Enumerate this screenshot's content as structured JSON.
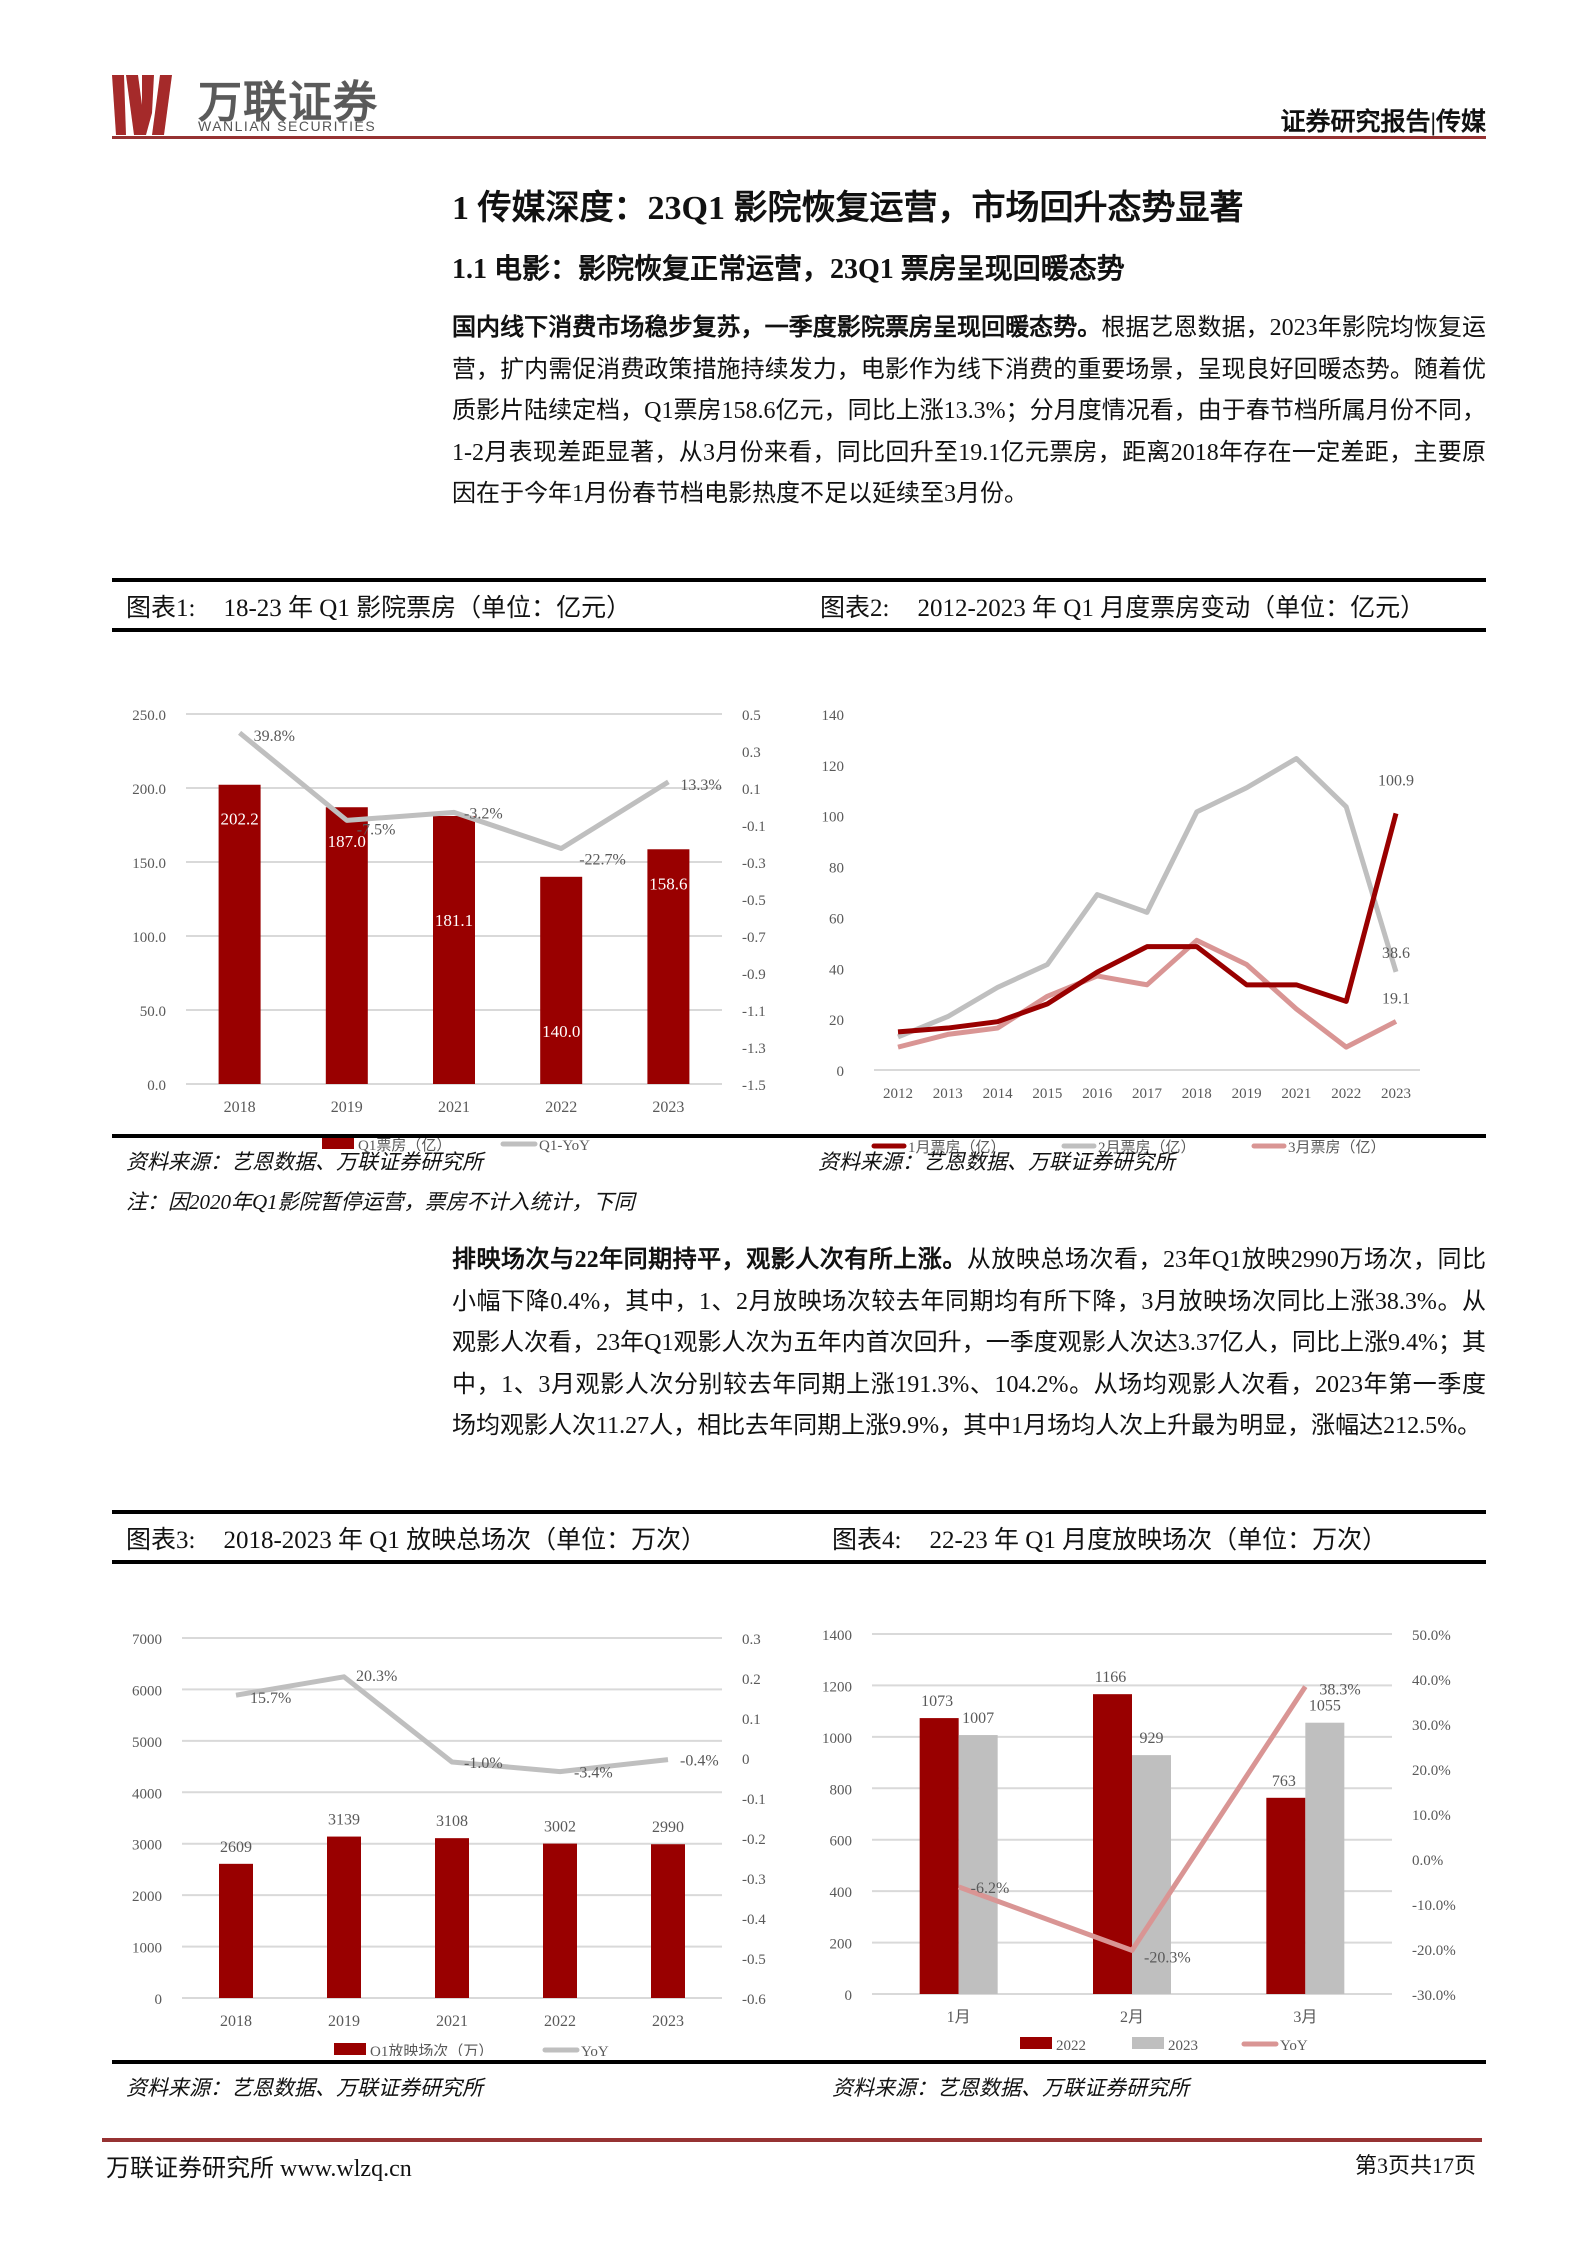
{
  "header": {
    "logo_cn": "万联证券",
    "logo_en": "WANLIAN SECURITIES",
    "report_type": "证券研究报告|传媒",
    "brand_color": "#963232",
    "logo_color": "#a52a2a"
  },
  "section": {
    "h1": "1   传媒深度：23Q1 影院恢复运营，市场回升态势显著",
    "h2": "1.1 电影：影院恢复正常运营，23Q1 票房呈现回暖态势"
  },
  "paragraph1": {
    "bold": "国内线下消费市场稳步复苏，一季度影院票房呈现回暖态势。",
    "text": "根据艺恩数据，2023年影院均恢复运营，扩内需促消费政策措施持续发力，电影作为线下消费的重要场景，呈现良好回暖态势。随着优质影片陆续定档，Q1票房158.6亿元，同比上涨13.3%；分月度情况看，由于春节档所属月份不同，1-2月表现差距显著，从3月份来看，同比回升至19.1亿元票房，距离2018年存在一定差距，主要原因在于今年1月份春节档电影热度不足以延续至3月份。"
  },
  "paragraph2": {
    "bold": "排映场次与22年同期持平，观影人次有所上涨。",
    "text": "从放映总场次看，23年Q1放映2990万场次，同比小幅下降0.4%，其中，1、2月放映场次较去年同期均有所下降，3月放映场次同比上涨38.3%。从观影人次看，23年Q1观影人次为五年内首次回升，一季度观影人次达3.37亿人，同比上涨9.4%；其中，1、3月观影人次分别较去年同期上涨191.3%、104.2%。从场均观影人次看，2023年第一季度场均观影人次11.27人，相比去年同期上涨9.9%，其中1月场均人次上升最为明显，涨幅达212.5%。"
  },
  "figures": {
    "fig1": {
      "label": "图表1:",
      "title": "18-23 年 Q1 影院票房（单位：亿元）",
      "source": "资料来源：艺恩数据、万联证券研究所"
    },
    "fig2": {
      "label": "图表2:",
      "title": "2012-2023 年 Q1 月度票房变动（单位：亿元）",
      "source": "资料来源：艺恩数据、万联证券研究所"
    },
    "fig3": {
      "label": "图表3:",
      "title": "2018-2023 年 Q1 放映总场次（单位：万次）",
      "source": "资料来源：艺恩数据、万联证券研究所"
    },
    "fig4": {
      "label": "图表4:",
      "title": "22-23 年 Q1 月度放映场次（单位：万次）",
      "source": "资料来源：艺恩数据、万联证券研究所"
    },
    "note": "注：因2020年Q1影院暂停运营，票房不计入统计，下同"
  },
  "footer": {
    "left": "万联证券研究所  www.wlzq.cn",
    "right": "第3页共17页"
  },
  "colors": {
    "dark_red": "#990000",
    "gray": "#bfbfbf",
    "pink": "#d99594",
    "grid": "#d9d9d9",
    "axis_text": "#595959"
  },
  "chart_data": [
    {
      "id": "fig1",
      "type": "bar",
      "title": "18-23 年 Q1 影院票房（单位：亿元）",
      "categories": [
        "2018",
        "2019",
        "2021",
        "2022",
        "2023"
      ],
      "series": [
        {
          "name": "Q1票房（亿）",
          "type": "bar",
          "axis": "left",
          "values": [
            202.2,
            187.0,
            181.1,
            140.0,
            158.6
          ],
          "labels": [
            "202.2",
            "187.0",
            "181.1",
            "140.0",
            "158.6"
          ]
        },
        {
          "name": "Q1-YoY",
          "type": "line",
          "axis": "right",
          "values": [
            0.398,
            -0.075,
            -0.032,
            -0.227,
            0.133
          ],
          "labels": [
            "39.8%",
            "-7.5%",
            "-3.2%",
            "-22.7%",
            "13.3%"
          ]
        }
      ],
      "ylim": [
        0,
        250
      ],
      "yticks": [
        "0.0",
        "50.0",
        "100.0",
        "150.0",
        "200.0",
        "250.0"
      ],
      "y2lim": [
        -1.5,
        0.5
      ],
      "y2ticks": [
        "-1.5",
        "-1.3",
        "-1.1",
        "-0.9",
        "-0.7",
        "-0.5",
        "-0.3",
        "-0.1",
        "0.1",
        "0.3",
        "0.5"
      ],
      "grid": true,
      "legend_position": "bottom"
    },
    {
      "id": "fig2",
      "type": "line",
      "title": "2012-2023 年 Q1 月度票房变动（单位：亿元）",
      "categories": [
        "2012",
        "2013",
        "2014",
        "2015",
        "2016",
        "2017",
        "2018",
        "2019",
        "2021",
        "2022",
        "2023"
      ],
      "series": [
        {
          "name": "1月票房（亿）",
          "values": [
            15.0,
            16.5,
            19.0,
            26.0,
            38.5,
            48.5,
            48.5,
            33.5,
            33.5,
            27.0,
            100.9
          ]
        },
        {
          "name": "2月票房（亿）",
          "values": [
            13.0,
            21.0,
            32.5,
            41.5,
            69.0,
            62.0,
            101.5,
            111.0,
            122.5,
            103.5,
            38.6
          ]
        },
        {
          "name": "3月票房（亿）",
          "values": [
            9.0,
            14.0,
            16.5,
            29.0,
            37.0,
            33.5,
            51.0,
            41.5,
            24.0,
            9.0,
            19.1
          ]
        }
      ],
      "annotations": [
        "100.9",
        "38.6",
        "19.1"
      ],
      "ylim": [
        0,
        140
      ],
      "yticks": [
        "0",
        "20",
        "40",
        "60",
        "80",
        "100",
        "120",
        "140"
      ],
      "grid": false,
      "legend_position": "bottom"
    },
    {
      "id": "fig3",
      "type": "bar",
      "title": "2018-2023 年 Q1 放映总场次（单位：万次）",
      "categories": [
        "2018",
        "2019",
        "2021",
        "2022",
        "2023"
      ],
      "series": [
        {
          "name": "Q1放映场次（万）",
          "type": "bar",
          "axis": "left",
          "values": [
            2609,
            3139,
            3108,
            3002,
            2990
          ],
          "labels": [
            "2609",
            "3139",
            "3108",
            "3002",
            "2990"
          ]
        },
        {
          "name": "YoY",
          "type": "line",
          "axis": "right",
          "values": [
            0.157,
            0.203,
            -0.01,
            -0.034,
            -0.004
          ],
          "labels": [
            "15.7%",
            "20.3%",
            "-1.0%",
            "-3.4%",
            "-0.4%"
          ]
        }
      ],
      "ylim": [
        0,
        7000
      ],
      "yticks": [
        "0",
        "1000",
        "2000",
        "3000",
        "4000",
        "5000",
        "6000",
        "7000"
      ],
      "y2lim": [
        -0.6,
        0.3
      ],
      "y2ticks": [
        "-0.6",
        "-0.5",
        "-0.4",
        "-0.3",
        "-0.2",
        "-0.1",
        "0",
        "0.1",
        "0.2",
        "0.3"
      ],
      "grid": true,
      "legend_position": "bottom"
    },
    {
      "id": "fig4",
      "type": "bar",
      "title": "22-23 年 Q1 月度放映场次（单位：万次）",
      "categories": [
        "1月",
        "2月",
        "3月"
      ],
      "series": [
        {
          "name": "2022",
          "type": "bar",
          "axis": "left",
          "values": [
            1073,
            1166,
            763
          ]
        },
        {
          "name": "2023",
          "type": "bar",
          "axis": "left",
          "values": [
            1007,
            929,
            1055
          ]
        },
        {
          "name": "YoY",
          "type": "line",
          "axis": "right",
          "values": [
            -0.062,
            -0.203,
            0.383
          ],
          "labels": [
            "-6.2%",
            "-20.3%",
            "38.3%"
          ]
        }
      ],
      "ylim": [
        0,
        1400
      ],
      "yticks": [
        "0",
        "200",
        "400",
        "600",
        "800",
        "1000",
        "1200",
        "1400"
      ],
      "y2lim": [
        -0.3,
        0.5
      ],
      "y2ticks": [
        "-30.0%",
        "-20.0%",
        "-10.0%",
        "0.0%",
        "10.0%",
        "20.0%",
        "30.0%",
        "40.0%",
        "50.0%"
      ],
      "grid": true,
      "legend_position": "bottom"
    }
  ]
}
